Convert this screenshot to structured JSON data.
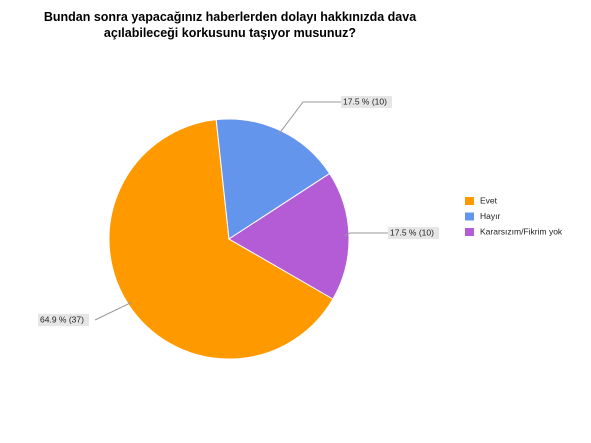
{
  "chart_data": {
    "type": "pie",
    "title": "Bundan sonra yapacağınız haberlerden dolayı hakkınızda dava açılabileceği korkusunu taşıyor musunuz?",
    "categories": [
      "Evet",
      "Hayır",
      "Kararsızım/Fikrim yok"
    ],
    "values": [
      64.9,
      17.5,
      17.5
    ],
    "value_labels": [
      "64.9 % (37)",
      "17.5 % (10)",
      "17.5 % (10)"
    ],
    "colors": [
      "#ff9900",
      "#6495ed",
      "#b45bd6"
    ],
    "legend": "right"
  }
}
